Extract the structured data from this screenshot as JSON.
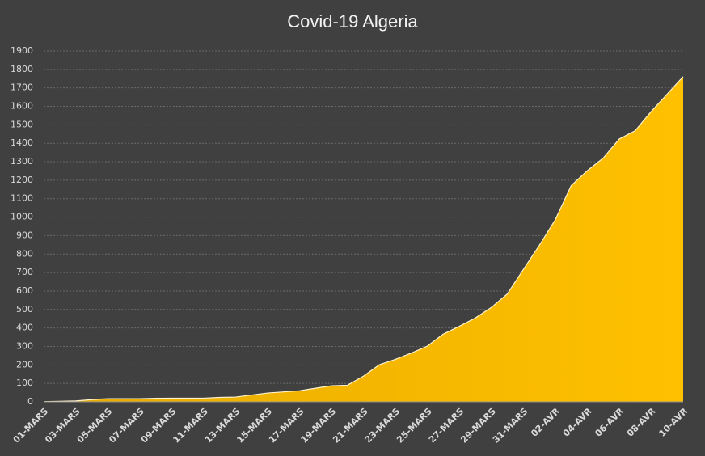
{
  "chart_data": {
    "type": "area",
    "title": "Covid-19 Algeria",
    "categories": [
      "01-MARS",
      null,
      "03-MARS",
      null,
      "05-MARS",
      null,
      "07-MARS",
      null,
      "09-MARS",
      null,
      "11-MARS",
      null,
      "13-MARS",
      null,
      "15-MARS",
      null,
      "17-MARS",
      null,
      "19-MARS",
      null,
      "21-MARS",
      null,
      "23-MARS",
      null,
      "25-MARS",
      null,
      "27-MARS",
      null,
      "29-MARS",
      null,
      "31-MARS",
      null,
      "02-AVR",
      null,
      "04-AVR",
      null,
      "06-AVR",
      null,
      "08-AVR",
      null,
      "10-AVR"
    ],
    "values": [
      1,
      3,
      5,
      12,
      17,
      17,
      17,
      19,
      20,
      20,
      20,
      24,
      26,
      37,
      48,
      54,
      60,
      74,
      87,
      90,
      139,
      201,
      230,
      264,
      302,
      367,
      409,
      454,
      511,
      584,
      716,
      847,
      986,
      1171,
      1251,
      1320,
      1423,
      1468,
      1572,
      1666,
      1761
    ],
    "color": "#ffc000",
    "ylim": [
      0,
      1900
    ],
    "yticks": [
      0,
      100,
      200,
      300,
      400,
      500,
      600,
      700,
      800,
      900,
      1000,
      1100,
      1200,
      1300,
      1400,
      1500,
      1600,
      1700,
      1800,
      1900
    ],
    "grid": true
  }
}
